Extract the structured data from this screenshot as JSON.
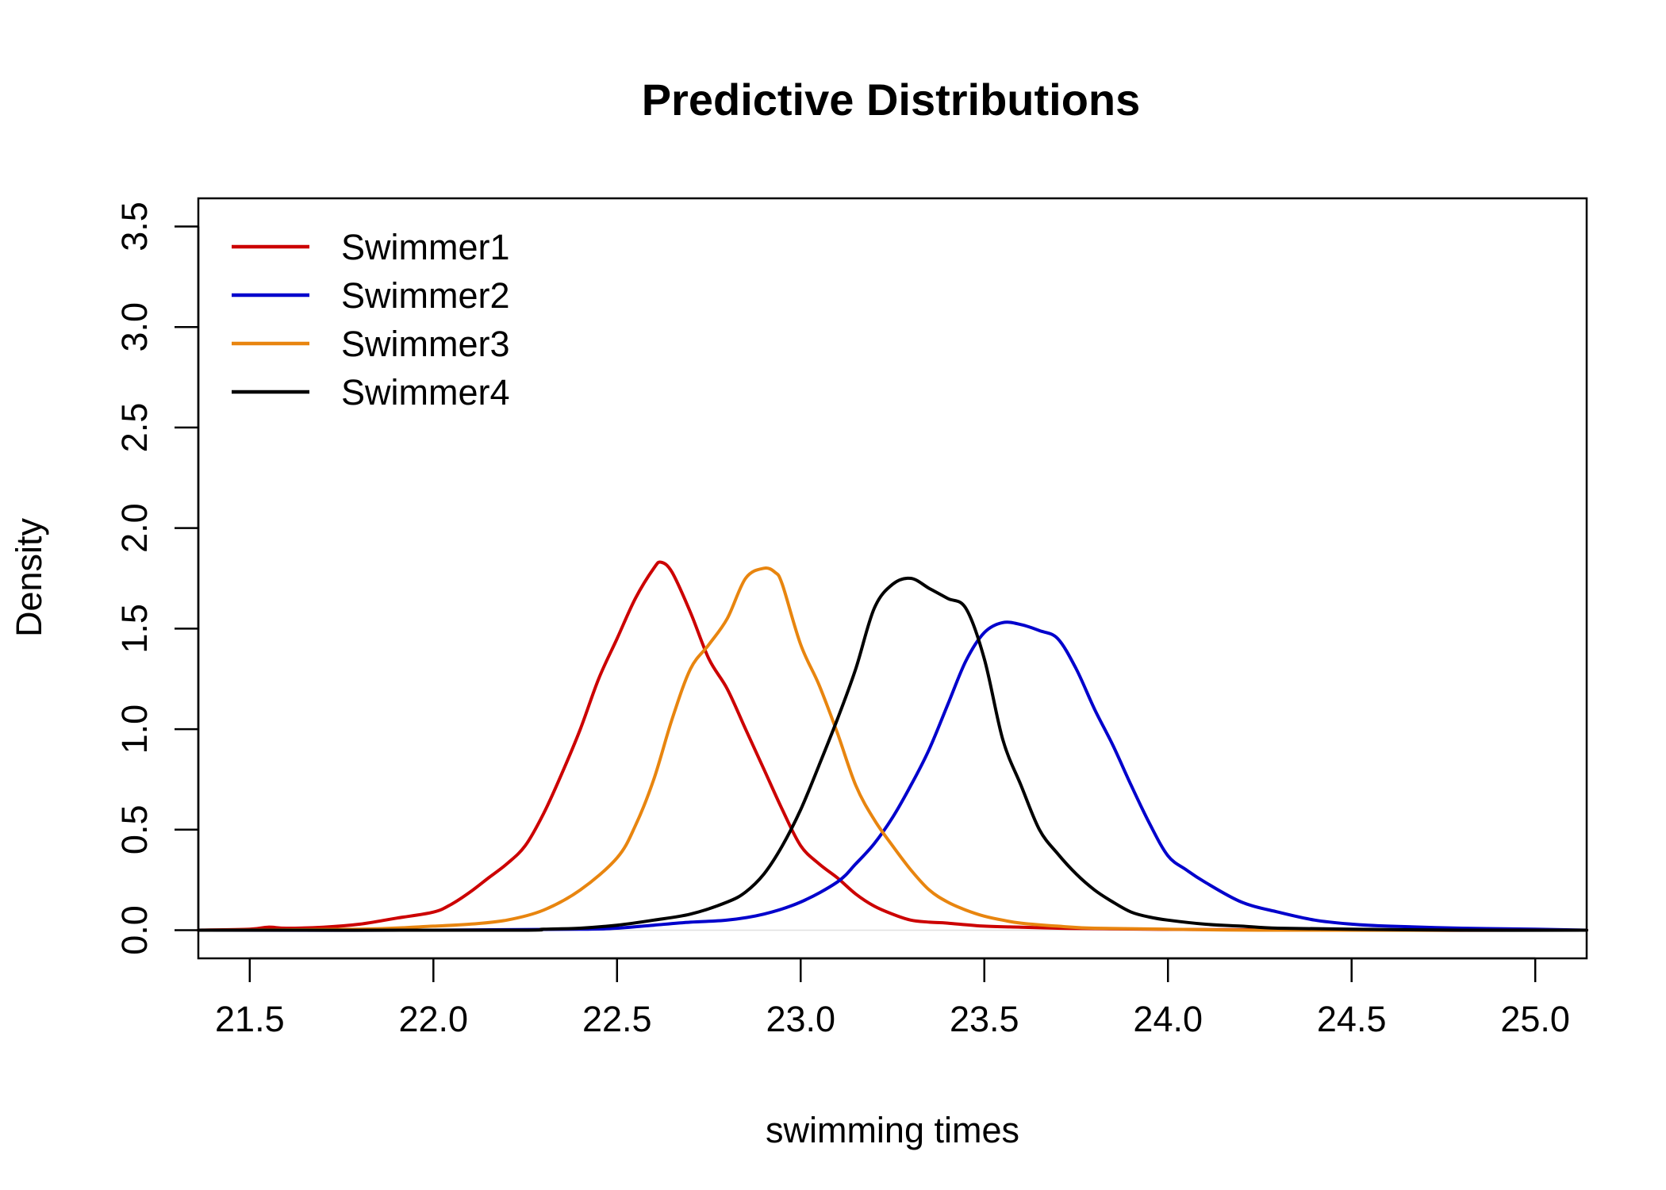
{
  "chart_data": {
    "type": "line",
    "title": "Predictive Distributions",
    "xlabel": "swimming times",
    "ylabel": "Density",
    "xlim": [
      21.36,
      25.14
    ],
    "ylim": [
      -0.14,
      3.64
    ],
    "xticks": [
      "21.5",
      "22.0",
      "22.5",
      "23.0",
      "23.5",
      "24.0",
      "24.5",
      "25.0"
    ],
    "yticks": [
      "0.0",
      "0.5",
      "1.0",
      "1.5",
      "2.0",
      "2.5",
      "3.0",
      "3.5"
    ],
    "legend": {
      "position": "top-left"
    },
    "grid": false,
    "series": [
      {
        "name": "Swimmer1",
        "color": "#CC0000",
        "x": [
          21.36,
          21.5,
          21.55,
          21.6,
          21.7,
          21.8,
          21.9,
          22.0,
          22.05,
          22.1,
          22.15,
          22.2,
          22.25,
          22.3,
          22.35,
          22.4,
          22.45,
          22.5,
          22.55,
          22.6,
          22.62,
          22.65,
          22.7,
          22.75,
          22.8,
          22.85,
          22.9,
          22.95,
          23.0,
          23.05,
          23.1,
          23.15,
          23.2,
          23.25,
          23.3,
          23.35,
          23.4,
          23.5,
          23.6,
          23.7,
          23.8,
          24.0,
          24.5,
          25.14
        ],
        "y": [
          0.0,
          0.005,
          0.015,
          0.01,
          0.015,
          0.03,
          0.06,
          0.09,
          0.13,
          0.19,
          0.26,
          0.33,
          0.42,
          0.58,
          0.78,
          1.0,
          1.25,
          1.45,
          1.65,
          1.8,
          1.83,
          1.78,
          1.58,
          1.35,
          1.2,
          1.0,
          0.8,
          0.6,
          0.42,
          0.33,
          0.26,
          0.18,
          0.12,
          0.08,
          0.05,
          0.04,
          0.035,
          0.02,
          0.015,
          0.01,
          0.008,
          0.004,
          0.0,
          0.0
        ]
      },
      {
        "name": "Swimmer2",
        "color": "#0000CC",
        "x": [
          21.36,
          22.0,
          22.4,
          22.5,
          22.6,
          22.7,
          22.8,
          22.9,
          23.0,
          23.1,
          23.15,
          23.2,
          23.25,
          23.3,
          23.35,
          23.4,
          23.45,
          23.5,
          23.55,
          23.6,
          23.65,
          23.7,
          23.75,
          23.8,
          23.85,
          23.9,
          23.95,
          24.0,
          24.05,
          24.1,
          24.2,
          24.3,
          24.4,
          24.5,
          24.6,
          24.8,
          25.0,
          25.14
        ],
        "y": [
          0.0,
          0.0,
          0.005,
          0.01,
          0.025,
          0.04,
          0.05,
          0.08,
          0.14,
          0.24,
          0.33,
          0.43,
          0.56,
          0.72,
          0.9,
          1.12,
          1.34,
          1.48,
          1.53,
          1.52,
          1.49,
          1.45,
          1.3,
          1.1,
          0.92,
          0.72,
          0.53,
          0.37,
          0.3,
          0.24,
          0.14,
          0.09,
          0.05,
          0.03,
          0.02,
          0.01,
          0.005,
          0.0
        ]
      },
      {
        "name": "Swimmer3",
        "color": "#E8850F",
        "x": [
          21.36,
          21.8,
          22.0,
          22.1,
          22.2,
          22.3,
          22.4,
          22.5,
          22.55,
          22.6,
          22.65,
          22.7,
          22.75,
          22.8,
          22.85,
          22.9,
          22.93,
          22.95,
          23.0,
          23.05,
          23.1,
          23.15,
          23.2,
          23.25,
          23.3,
          23.35,
          23.4,
          23.45,
          23.5,
          23.55,
          23.6,
          23.7,
          23.8,
          24.0,
          24.3,
          25.14
        ],
        "y": [
          0.0,
          0.005,
          0.02,
          0.03,
          0.05,
          0.1,
          0.2,
          0.36,
          0.52,
          0.75,
          1.05,
          1.3,
          1.42,
          1.55,
          1.75,
          1.8,
          1.78,
          1.72,
          1.42,
          1.22,
          0.98,
          0.72,
          0.55,
          0.42,
          0.3,
          0.2,
          0.14,
          0.1,
          0.07,
          0.05,
          0.035,
          0.02,
          0.01,
          0.005,
          0.0,
          0.0
        ]
      },
      {
        "name": "Swimmer4",
        "color": "#000000",
        "x": [
          21.36,
          22.2,
          22.3,
          22.4,
          22.5,
          22.6,
          22.7,
          22.8,
          22.85,
          22.9,
          22.95,
          23.0,
          23.05,
          23.1,
          23.15,
          23.2,
          23.25,
          23.3,
          23.35,
          23.4,
          23.45,
          23.5,
          23.55,
          23.6,
          23.65,
          23.7,
          23.75,
          23.8,
          23.85,
          23.9,
          23.95,
          24.0,
          24.1,
          24.2,
          24.3,
          24.5,
          24.8,
          25.14
        ],
        "y": [
          0.0,
          0.0,
          0.005,
          0.01,
          0.025,
          0.05,
          0.08,
          0.14,
          0.19,
          0.28,
          0.42,
          0.6,
          0.82,
          1.05,
          1.3,
          1.6,
          1.72,
          1.75,
          1.7,
          1.65,
          1.6,
          1.35,
          0.95,
          0.72,
          0.5,
          0.38,
          0.28,
          0.2,
          0.14,
          0.09,
          0.065,
          0.05,
          0.03,
          0.02,
          0.01,
          0.005,
          0.0,
          0.0
        ]
      }
    ]
  }
}
